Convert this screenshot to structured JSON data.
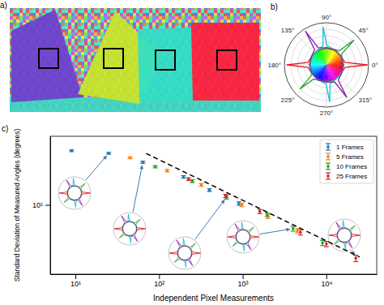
{
  "chart_data": [
    {
      "type": "image",
      "title": "a)"
    },
    {
      "type": "polar",
      "title": "b)",
      "xlim": [
        0,
        360
      ],
      "xticks": [
        {
          "value": 0,
          "label": "0°"
        },
        {
          "value": 45,
          "label": "45°"
        },
        {
          "value": 90,
          "label": "90°"
        },
        {
          "value": 135,
          "label": "135°"
        },
        {
          "value": 180,
          "label": "180°"
        },
        {
          "value": 225,
          "label": "225°"
        },
        {
          "value": 270,
          "label": "270°"
        },
        {
          "value": 315,
          "label": "315°"
        }
      ],
      "ylim": [
        0,
        1
      ],
      "yticks": [
        0.25,
        0.5,
        0.75,
        1
      ],
      "grid": true,
      "tick_labels": "x",
      "series": [
        {
          "color": "#e41a1c",
          "x": [
            0,
            8,
            30,
            60,
            90,
            120,
            150,
            172,
            180,
            188,
            210,
            240,
            270,
            300,
            330,
            352
          ],
          "values": [
            0.95,
            0.1,
            0.04,
            0.03,
            0.05,
            0.03,
            0.04,
            0.1,
            0.9,
            0.1,
            0.04,
            0.03,
            0.05,
            0.03,
            0.04,
            0.1
          ]
        },
        {
          "color": "#2ca02c",
          "x": [
            0,
            30,
            36,
            42,
            48,
            60,
            90,
            120,
            150,
            180,
            210,
            216,
            222,
            228,
            240,
            270,
            300,
            330
          ],
          "values": [
            0.04,
            0.05,
            0.12,
            0.8,
            0.12,
            0.05,
            0.03,
            0.04,
            0.05,
            0.03,
            0.05,
            0.12,
            0.75,
            0.12,
            0.05,
            0.03,
            0.04,
            0.05
          ]
        },
        {
          "color": "#17becf",
          "x": [
            0,
            30,
            60,
            89,
            95,
            101,
            120,
            150,
            180,
            210,
            240,
            269,
            275,
            281,
            300,
            330
          ],
          "values": [
            0.03,
            0.04,
            0.05,
            0.12,
            0.85,
            0.12,
            0.05,
            0.04,
            0.03,
            0.04,
            0.05,
            0.12,
            0.8,
            0.12,
            0.05,
            0.04
          ]
        },
        {
          "color": "#8e24aa",
          "x": [
            0,
            30,
            60,
            90,
            116,
            122,
            128,
            150,
            180,
            210,
            240,
            270,
            296,
            302,
            308,
            330
          ],
          "values": [
            0.04,
            0.03,
            0.05,
            0.04,
            0.12,
            0.9,
            0.12,
            0.05,
            0.04,
            0.03,
            0.05,
            0.04,
            0.12,
            0.85,
            0.12,
            0.05
          ]
        }
      ]
    },
    {
      "type": "scatter",
      "title": "c)",
      "xlabel": "Independent Pixel Measurements",
      "ylabel": "Standard Deviation of Measured Angles (degrees)",
      "log": true,
      "xlim": [
        5,
        40000
      ],
      "ylim": [
        1.4,
        70
      ],
      "xticks": [
        {
          "value": 10,
          "label": "10¹"
        },
        {
          "value": 100,
          "label": "10²"
        },
        {
          "value": 1000,
          "label": "10³"
        },
        {
          "value": 10000,
          "label": "10⁴"
        }
      ],
      "yticks": [
        {
          "value": 10,
          "label": "10¹"
        }
      ],
      "legend": "upper right",
      "series": [
        {
          "name": "1 Frames",
          "color": "#1f77b4",
          "marker": "circle",
          "x": [
            9,
            25,
            64,
            196,
            400,
            900
          ],
          "values": [
            46.5,
            43.2,
            33.5,
            22.1,
            15.2,
            10.4
          ],
          "errors": [
            1.2,
            1.1,
            1.0,
            0.8,
            0.6,
            0.5
          ]
        },
        {
          "name": "5 Frames",
          "color": "#ff7f0e",
          "marker": "circle",
          "x": [
            45,
            125,
            320,
            980,
            2000,
            4500
          ],
          "values": [
            38.1,
            26.4,
            17.6,
            10.0,
            7.2,
            4.8
          ],
          "errors": [
            1.0,
            0.9,
            0.7,
            0.5,
            0.4,
            0.3
          ]
        },
        {
          "name": "10 Frames",
          "color": "#2ca02c",
          "marker": "circle",
          "x": [
            90,
            250,
            640,
            1960,
            4000,
            9000
          ],
          "values": [
            29.5,
            19.6,
            12.4,
            7.6,
            5.1,
            3.4
          ],
          "errors": [
            0.9,
            0.8,
            0.6,
            0.4,
            0.35,
            0.25
          ]
        },
        {
          "name": "25 Frames",
          "color": "#d62728",
          "marker": "circle",
          "x": [
            225,
            625,
            1600,
            4900,
            10000,
            22500
          ],
          "values": [
            20.8,
            12.9,
            8.3,
            4.6,
            3.3,
            2.2
          ],
          "errors": [
            0.8,
            0.6,
            0.5,
            0.35,
            0.25,
            0.2
          ]
        },
        {
          "type": "line",
          "line_style": "dashed",
          "color": "#000000",
          "x": [
            70,
            25000
          ],
          "values": [
            43,
            2.28
          ]
        }
      ]
    }
  ]
}
